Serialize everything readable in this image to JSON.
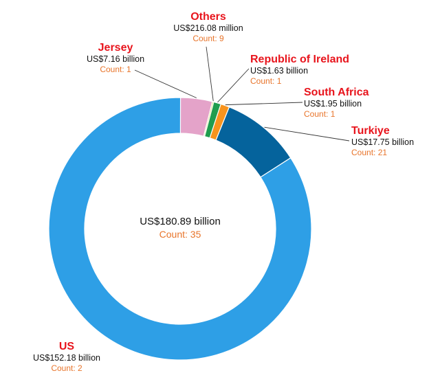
{
  "chart_data": {
    "type": "pie",
    "subtype": "donut",
    "center": {
      "value": "US$180.89 billion",
      "count": "Count: 35"
    },
    "colors": {
      "name": "#e8141c",
      "count": "#e8742a"
    },
    "slices": [
      {
        "key": "US",
        "name": "US",
        "value": 152.18,
        "value_label": "US$152.18 billion",
        "count_label": "Count: 2",
        "color": "#2e9fe6"
      },
      {
        "key": "Jersey",
        "name": "Jersey",
        "value": 7.16,
        "value_label": "US$7.16 billion",
        "count_label": "Count: 1",
        "color": "#e4a3c9"
      },
      {
        "key": "Others",
        "name": "Others",
        "value": 0.21608,
        "value_label": "US$216.08 million",
        "count_label": "Count: 9",
        "color": "#ccd35a"
      },
      {
        "key": "Ireland",
        "name": "Republic of Ireland",
        "value": 1.63,
        "value_label": "US$1.63 billion",
        "count_label": "Count: 1",
        "color": "#1f9d4e"
      },
      {
        "key": "SouthAfrica",
        "name": "South Africa",
        "value": 1.95,
        "value_label": "US$1.95 billion",
        "count_label": "Count: 1",
        "color": "#f7941e"
      },
      {
        "key": "Turkiye",
        "name": "Turkiye",
        "value": 17.75,
        "value_label": "US$17.75 billion",
        "count_label": "Count: 21",
        "color": "#05639c"
      }
    ]
  }
}
